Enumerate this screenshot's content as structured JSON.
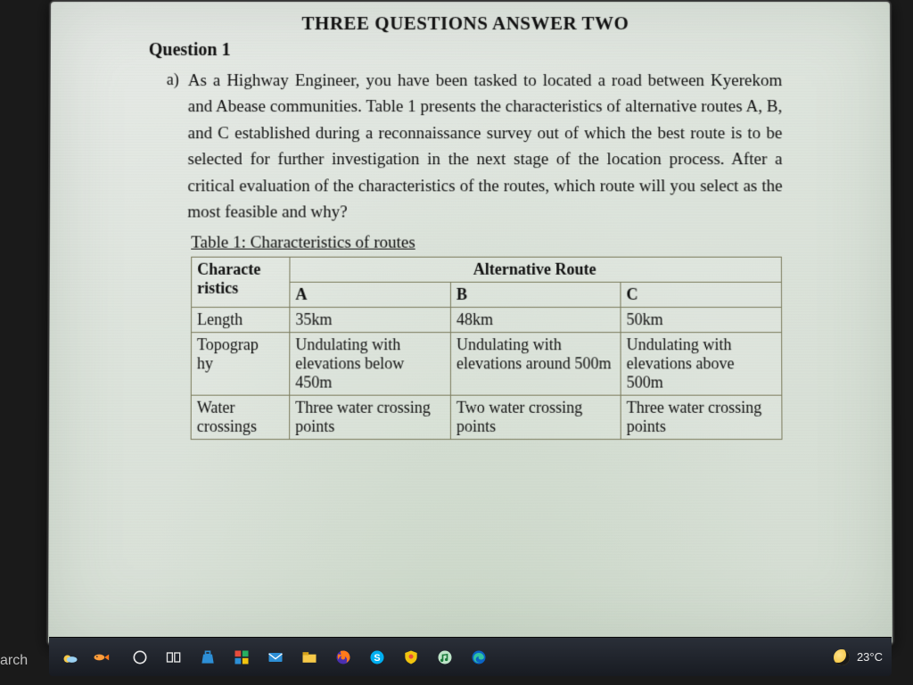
{
  "doc": {
    "title": "THREE QUESTIONS ANSWER TWO",
    "question_heading": "Question 1",
    "item_letter": "a)",
    "item_text": "As a Highway Engineer, you have been tasked to located a road between Kyerekom and Abease communities. Table 1 presents the characteristics of alternative routes A, B, and C established during a reconnaissance survey out of which the best route is to be selected for further investigation in the next stage of the location process. After a critical evaluation of the characteristics of the routes, which route will you select as the most feasible and why?",
    "table_caption": "Table 1: Characteristics of routes",
    "table": {
      "char_header": "Characte\nristics",
      "alt_header": "Alternative Route",
      "columns": [
        "A",
        "B",
        "C"
      ],
      "rows": [
        {
          "label": "Length",
          "A": "35km",
          "B": "48km",
          "C": "50km"
        },
        {
          "label": "Topograp\nhy",
          "A": "Undulating with elevations below 450m",
          "B": "Undulating with elevations around 500m",
          "C": "Undulating with elevations above 500m"
        },
        {
          "label": "Water crossings",
          "A": "Three water crossing points",
          "B": "Two water crossing points",
          "C": "Three water crossing points"
        }
      ]
    }
  },
  "taskbar": {
    "left_cut_label": "arch",
    "temperature": "23°C",
    "icons": {
      "cortana": "cortana-icon",
      "taskview": "task-view-icon",
      "store": "store-icon",
      "tiles": "tiles-icon",
      "mail": "mail-icon",
      "explorer": "file-explorer-icon",
      "firefox": "firefox-icon",
      "skype": "skype-icon",
      "shield": "shield-icon",
      "music": "music-icon",
      "edge": "edge-icon"
    }
  },
  "colors": {
    "page_bg_top": "#e8ebe8",
    "page_bg_bottom": "#d4ddd2",
    "table_border": "#7b7b5c",
    "body_bg": "#1a1a1a",
    "taskbar_top": "#2a2f38",
    "taskbar_bottom": "#181b22",
    "moon_accent": "#f7c948"
  }
}
